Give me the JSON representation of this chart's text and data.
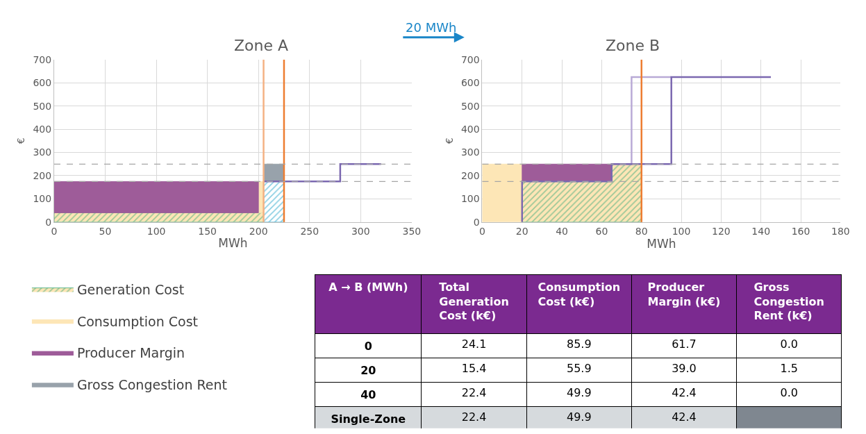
{
  "chart_data": [
    {
      "type": "line",
      "title": "Zone A",
      "xlabel": "MWh",
      "ylabel": "€",
      "xlim": [
        0,
        350
      ],
      "xticks": [
        0,
        50,
        100,
        150,
        200,
        250,
        300,
        350
      ],
      "ylim": [
        0,
        700
      ],
      "yticks": [
        0,
        100,
        200,
        300,
        400,
        500,
        600,
        700
      ],
      "grid": true,
      "legend": "bottom left",
      "annotations": [
        "20 MWh"
      ],
      "series": [
        {
          "type": "area",
          "name": "Generation Cost",
          "color": "#3aa87a",
          "x": [
            0,
            0,
            205,
            205,
            0
          ],
          "values": [
            0,
            40,
            40,
            0,
            0
          ]
        },
        {
          "type": "area",
          "name": "Consumption Cost",
          "color": "#fde6b6",
          "x": [
            200,
            200,
            205,
            205,
            200
          ],
          "values": [
            40,
            175,
            175,
            40,
            40
          ]
        },
        {
          "type": "area",
          "name": "Producer Margin",
          "color": "#9e5c99",
          "x": [
            0,
            0,
            200,
            200,
            0
          ],
          "values": [
            40,
            175,
            175,
            40,
            40
          ]
        },
        {
          "type": "area",
          "color": "#1aa0c8",
          "x": [
            205,
            205,
            225,
            225,
            205
          ],
          "values": [
            0,
            175,
            175,
            0,
            0
          ]
        },
        {
          "type": "area",
          "name": "Gross Congestion Rent",
          "color": "#98a2ab",
          "x": [
            205,
            205,
            225,
            225,
            205
          ],
          "values": [
            175,
            250,
            250,
            175,
            175
          ]
        },
        {
          "type": "line",
          "color": "#7b68b0",
          "x": [
            205,
            280,
            280,
            320
          ],
          "values": [
            175,
            175,
            250,
            250
          ]
        }
      ],
      "ref_lines": [
        {
          "axis": "x",
          "value": 205,
          "color": "#f4b183"
        },
        {
          "axis": "x",
          "value": 225,
          "color": "#ed7d31"
        },
        {
          "axis": "y",
          "value": 250,
          "color": "#a6a6a6",
          "line_style": "dashed"
        },
        {
          "axis": "y",
          "value": 175,
          "color": "#a6a6a6",
          "line_style": "dashed"
        }
      ]
    },
    {
      "type": "line",
      "title": "Zone B",
      "xlabel": "MWh",
      "ylabel": "€",
      "xlim": [
        0,
        180
      ],
      "xticks": [
        0,
        20,
        40,
        60,
        80,
        100,
        120,
        140,
        160,
        180
      ],
      "ylim": [
        0,
        700
      ],
      "yticks": [
        0,
        100,
        200,
        300,
        400,
        500,
        600,
        700
      ],
      "grid": true,
      "series": [
        {
          "type": "area",
          "color": "#fde6b6",
          "x": [
            0,
            0,
            20,
            20,
            0
          ],
          "values": [
            0,
            250,
            250,
            0,
            0
          ]
        },
        {
          "type": "area",
          "color": "#3aa87a",
          "x": [
            20,
            20,
            65,
            65,
            80,
            80,
            20
          ],
          "values": [
            0,
            175,
            175,
            250,
            250,
            0,
            0
          ]
        },
        {
          "type": "area",
          "color": "#9e5c99",
          "x": [
            20,
            20,
            65,
            65,
            20
          ],
          "values": [
            175,
            250,
            250,
            175,
            175
          ]
        },
        {
          "type": "line",
          "color": "#b9aad6",
          "x": [
            65,
            75,
            75,
            95
          ],
          "values": [
            250,
            250,
            625,
            625
          ]
        },
        {
          "type": "line",
          "color": "#7b68b0",
          "x": [
            20,
            20,
            65,
            65,
            95,
            95,
            145
          ],
          "values": [
            0,
            175,
            175,
            250,
            250,
            625,
            625
          ]
        }
      ],
      "ref_lines": [
        {
          "axis": "x",
          "value": 80,
          "color": "#ed7d31"
        },
        {
          "axis": "y",
          "value": 250,
          "color": "#a6a6a6",
          "line_style": "dashed"
        },
        {
          "axis": "y",
          "value": 175,
          "color": "#a6a6a6",
          "line_style": "dashed"
        }
      ]
    },
    {
      "type": "other",
      "categories": [
        "A → B (MWh)",
        "Total Generation Cost (k€)",
        "Consumption Cost (k€)",
        "Producer Margin (k€)",
        "Gross Congestion Rent (k€)"
      ],
      "y_categories": [
        "0",
        "20",
        "40",
        "Single-Zone"
      ],
      "cell_labels": [
        [
          "24.1",
          "85.9",
          "61.7",
          "0.0"
        ],
        [
          "15.4",
          "55.9",
          "39.0",
          "1.5"
        ],
        [
          "22.4",
          "49.9",
          "42.4",
          "0.0"
        ],
        [
          "22.4",
          "49.9",
          "42.4",
          null
        ]
      ]
    }
  ]
}
